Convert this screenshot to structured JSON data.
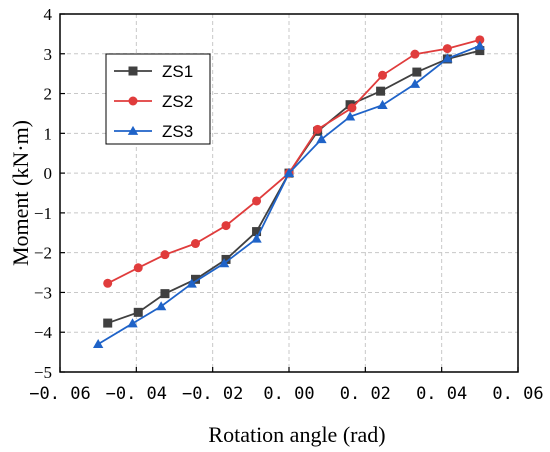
{
  "chart_data": {
    "type": "line",
    "title": "",
    "xlabel": "Rotation angle (rad)",
    "ylabel": "Moment (kN·m)",
    "xlim": [
      -0.06,
      0.06
    ],
    "ylim": [
      -5,
      4
    ],
    "x_ticks": [
      -0.06,
      -0.04,
      -0.02,
      0.0,
      0.02,
      0.04,
      0.06
    ],
    "x_tick_labels": [
      "−0. 06",
      "−0. 04",
      "−0. 02",
      "0. 00",
      "0. 02",
      "0. 04",
      "0. 06"
    ],
    "y_ticks": [
      -5,
      -4,
      -3,
      -2,
      -1,
      0,
      1,
      2,
      3,
      4
    ],
    "y_tick_labels": [
      "−5",
      "−4",
      "−3",
      "−2",
      "−1",
      "0",
      "1",
      "2",
      "3",
      "4"
    ],
    "grid": true,
    "legend_position": "upper-left",
    "series": [
      {
        "name": "ZS1",
        "color": "#404040",
        "marker": "square",
        "x": [
          -0.0475,
          -0.0395,
          -0.0325,
          -0.0245,
          -0.0165,
          -0.0085,
          0.0,
          0.0075,
          0.016,
          0.024,
          0.0335,
          0.0415,
          0.05
        ],
        "y": [
          -3.77,
          -3.5,
          -3.03,
          -2.67,
          -2.17,
          -1.47,
          0.0,
          1.05,
          1.72,
          2.06,
          2.54,
          2.87,
          3.08
        ]
      },
      {
        "name": "ZS2",
        "color": "#e03c3c",
        "marker": "circle",
        "x": [
          -0.0475,
          -0.0395,
          -0.0325,
          -0.0245,
          -0.0165,
          -0.0085,
          0.0,
          0.0075,
          0.0165,
          0.0245,
          0.033,
          0.0415,
          0.05
        ],
        "y": [
          -2.77,
          -2.38,
          -2.05,
          -1.77,
          -1.32,
          -0.7,
          0.0,
          1.1,
          1.64,
          2.46,
          2.99,
          3.13,
          3.35
        ]
      },
      {
        "name": "ZS3",
        "color": "#1f63c8",
        "marker": "triangle",
        "x": [
          -0.05,
          -0.041,
          -0.0335,
          -0.0255,
          -0.017,
          -0.0085,
          0.0,
          0.0085,
          0.016,
          0.0245,
          0.033,
          0.0415,
          0.05
        ],
        "y": [
          -4.3,
          -3.78,
          -3.35,
          -2.78,
          -2.27,
          -1.65,
          0.0,
          0.85,
          1.42,
          1.71,
          2.24,
          2.88,
          3.2
        ]
      }
    ]
  }
}
